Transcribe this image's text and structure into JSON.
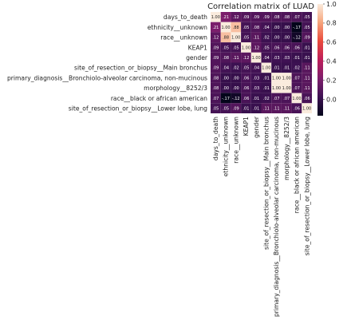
{
  "chart_data": {
    "type": "heatmap",
    "title": "Correlation matrix of LUAD",
    "labels": [
      "days_to_death",
      "ethnicity__unknown",
      "race__unknown",
      "KEAP1",
      "gender",
      "site_of_resection_or_biopsy__Main bronchus",
      "primary_diagnosis__Bronchiolo-alveolar carcinoma, non-mucinous",
      "morphology__8252/3",
      "race__black or african american",
      "site_of_resection_or_biopsy__Lower lobe, lung"
    ],
    "matrix": [
      [
        1.0,
        0.21,
        0.12,
        0.09,
        0.09,
        0.09,
        0.08,
        0.08,
        0.07,
        0.05
      ],
      [
        0.21,
        1.0,
        0.88,
        0.05,
        0.08,
        0.04,
        0.0,
        0.0,
        -0.17,
        0.05
      ],
      [
        0.12,
        0.88,
        1.0,
        0.05,
        0.11,
        0.02,
        0.0,
        0.0,
        -0.12,
        0.09
      ],
      [
        0.09,
        0.05,
        0.05,
        1.0,
        0.12,
        0.05,
        0.06,
        0.06,
        0.06,
        0.01
      ],
      [
        0.09,
        0.08,
        0.11,
        0.12,
        1.0,
        0.04,
        0.03,
        0.03,
        0.01,
        0.01
      ],
      [
        0.09,
        0.04,
        0.02,
        0.05,
        0.04,
        1.0,
        0.01,
        0.01,
        0.02,
        0.11
      ],
      [
        0.08,
        0.0,
        0.0,
        0.06,
        0.03,
        0.01,
        1.0,
        1.0,
        0.07,
        0.11
      ],
      [
        0.08,
        0.0,
        0.0,
        0.06,
        0.03,
        0.01,
        1.0,
        1.0,
        0.07,
        0.11
      ],
      [
        0.07,
        -0.17,
        -0.12,
        0.06,
        0.01,
        0.02,
        0.07,
        0.07,
        1.0,
        0.06
      ],
      [
        0.05,
        0.05,
        0.09,
        0.01,
        0.01,
        0.11,
        0.11,
        0.11,
        0.06,
        1.0
      ]
    ],
    "colorbar": {
      "ticks": [
        "1.0",
        "0.8",
        "0.6",
        "0.4",
        "0.2",
        "0.0"
      ],
      "min": -0.17,
      "max": 1.0
    },
    "colors": [
      "#03051a",
      "#3d1152",
      "#7e1e6c",
      "#bd1e5a",
      "#e94a3c",
      "#f6a47b",
      "#faebdd"
    ]
  }
}
